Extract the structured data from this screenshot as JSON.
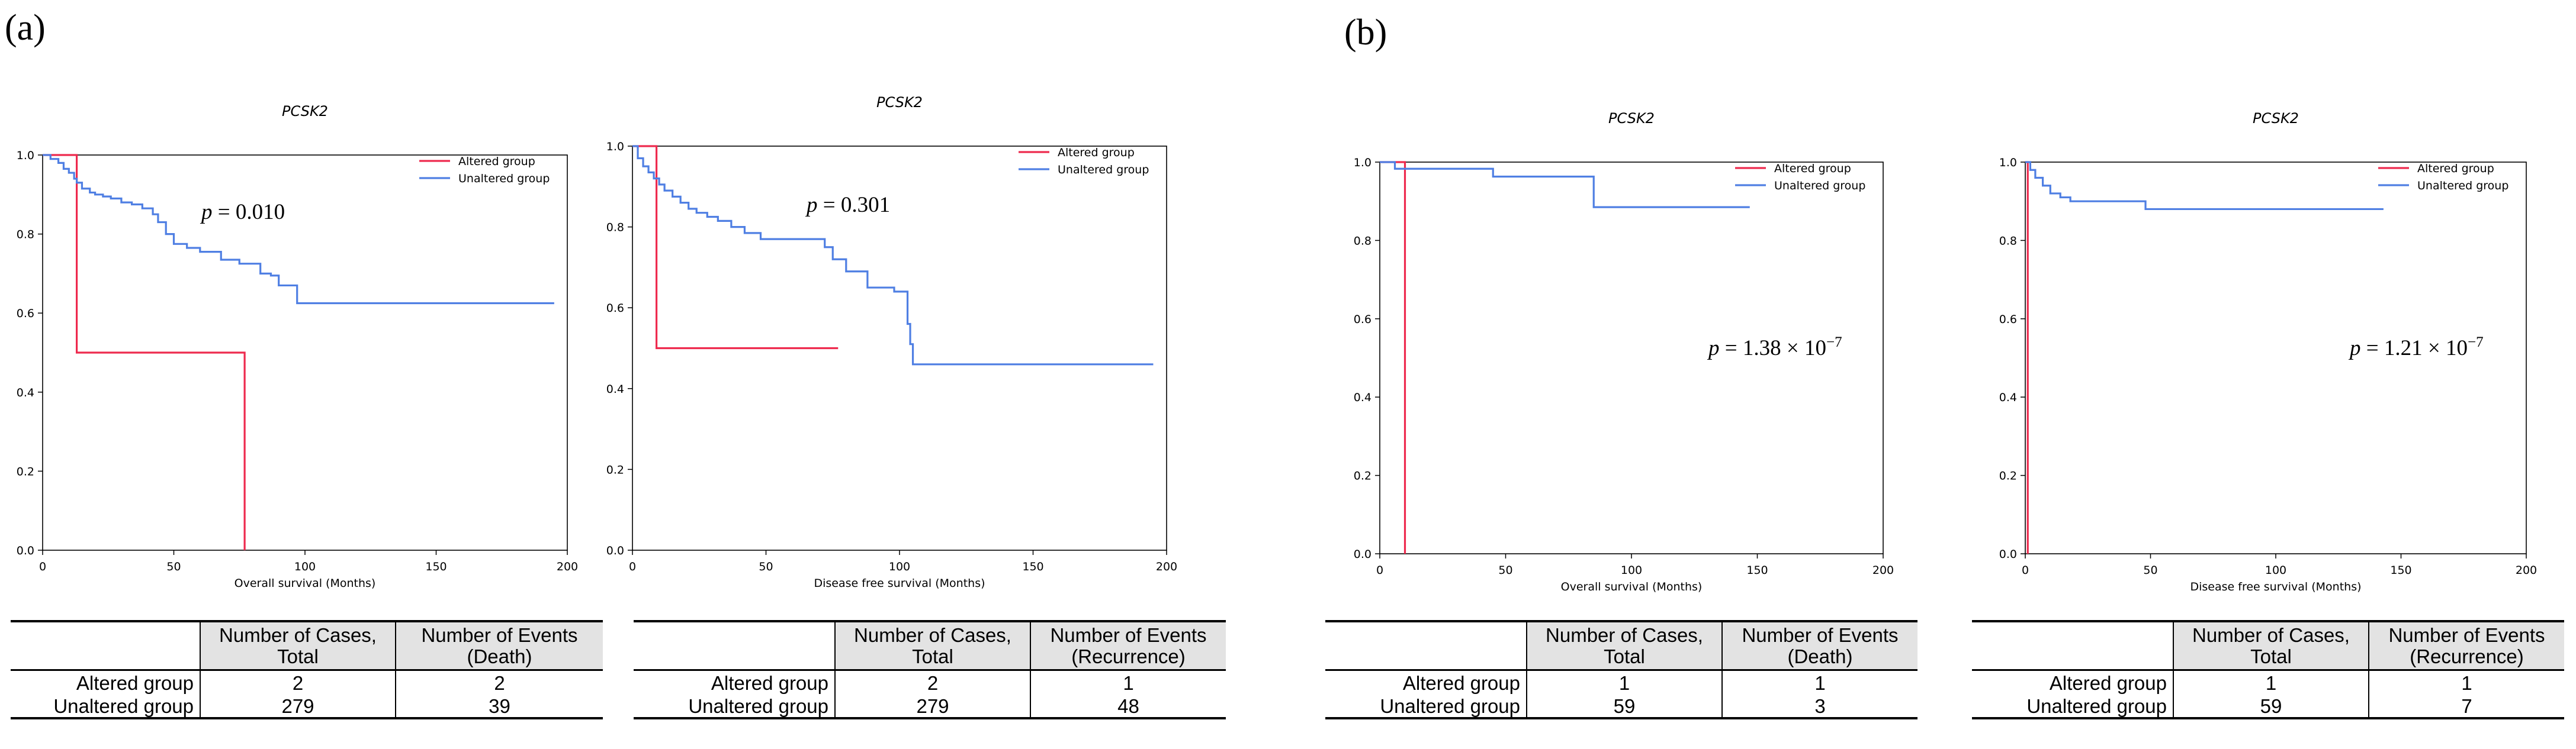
{
  "panel_labels": [
    "(a)",
    "(b)"
  ],
  "colors": {
    "altered": "#ee2a4e",
    "unaltered": "#4f7fe3"
  },
  "chart_data": [
    {
      "type": "line",
      "title": "PCSK2",
      "xlabel": "Overall survival (Months)",
      "ylabel": "",
      "xlim": [
        0,
        200
      ],
      "ylim": [
        0,
        1.0
      ],
      "xticks": [
        "0",
        "50",
        "100",
        "150",
        "200"
      ],
      "yticks": [
        "0.0",
        "0.2",
        "0.4",
        "0.6",
        "0.8",
        "1.0"
      ],
      "legend": [
        "Altered group",
        "Unaltered group"
      ],
      "p_label": "p",
      "p_value": "= 0.010",
      "series": [
        {
          "name": "Altered group",
          "x": [
            0,
            13,
            13,
            77,
            77
          ],
          "y": [
            1.0,
            1.0,
            0.5,
            0.5,
            0.0
          ]
        },
        {
          "name": "Unaltered group",
          "x": [
            0,
            3,
            6,
            8,
            10,
            12,
            13,
            15,
            18,
            20,
            23,
            26,
            30,
            34,
            38,
            42,
            44,
            47,
            50,
            55,
            60,
            68,
            75,
            83,
            87,
            90,
            97,
            195
          ],
          "y": [
            1.0,
            0.99,
            0.98,
            0.965,
            0.955,
            0.94,
            0.93,
            0.915,
            0.905,
            0.9,
            0.895,
            0.89,
            0.88,
            0.875,
            0.865,
            0.85,
            0.83,
            0.8,
            0.775,
            0.765,
            0.755,
            0.735,
            0.725,
            0.7,
            0.695,
            0.67,
            0.625,
            0.625
          ]
        }
      ]
    },
    {
      "type": "line",
      "title": "PCSK2",
      "xlabel": "Disease free survival (Months)",
      "ylabel": "",
      "xlim": [
        0,
        200
      ],
      "ylim": [
        0,
        1.0
      ],
      "xticks": [
        "0",
        "50",
        "100",
        "150",
        "200"
      ],
      "yticks": [
        "0.0",
        "0.2",
        "0.4",
        "0.6",
        "0.8",
        "1.0"
      ],
      "legend": [
        "Altered group",
        "Unaltered group"
      ],
      "p_label": "p",
      "p_value": "= 0.301",
      "series": [
        {
          "name": "Altered group",
          "x": [
            0,
            9,
            9,
            77
          ],
          "y": [
            1.0,
            1.0,
            0.5,
            0.5
          ]
        },
        {
          "name": "Unaltered group",
          "x": [
            0,
            2,
            4,
            6,
            8,
            10,
            12,
            15,
            18,
            21,
            24,
            28,
            32,
            37,
            42,
            48,
            55,
            60,
            72,
            75,
            80,
            88,
            98,
            103,
            104,
            105,
            195
          ],
          "y": [
            1.0,
            0.97,
            0.95,
            0.935,
            0.92,
            0.905,
            0.89,
            0.875,
            0.86,
            0.845,
            0.835,
            0.825,
            0.815,
            0.8,
            0.785,
            0.77,
            0.77,
            0.77,
            0.75,
            0.72,
            0.69,
            0.65,
            0.64,
            0.56,
            0.51,
            0.46,
            0.46
          ]
        }
      ]
    },
    {
      "type": "line",
      "title": "PCSK2",
      "xlabel": "Overall survival (Months)",
      "ylabel": "",
      "xlim": [
        0,
        200
      ],
      "ylim": [
        0,
        1.0
      ],
      "xticks": [
        "0",
        "50",
        "100",
        "150",
        "200"
      ],
      "yticks": [
        "0.0",
        "0.2",
        "0.4",
        "0.6",
        "0.8",
        "1.0"
      ],
      "legend": [
        "Altered group",
        "Unaltered group"
      ],
      "p_label": "p",
      "p_value": "= 1.38 × 10",
      "p_exp": "−7",
      "series": [
        {
          "name": "Altered group",
          "x": [
            0,
            10,
            10
          ],
          "y": [
            1.0,
            1.0,
            0.0
          ]
        },
        {
          "name": "Unaltered group",
          "x": [
            0,
            6,
            6,
            45,
            45,
            85,
            85,
            147
          ],
          "y": [
            1.0,
            1.0,
            0.983,
            0.983,
            0.963,
            0.963,
            0.885,
            0.885
          ]
        }
      ]
    },
    {
      "type": "line",
      "title": "PCSK2",
      "xlabel": "Disease free survival (Months)",
      "ylabel": "",
      "xlim": [
        0,
        200
      ],
      "ylim": [
        0,
        1.0
      ],
      "xticks": [
        "0",
        "50",
        "100",
        "150",
        "200"
      ],
      "yticks": [
        "0.0",
        "0.2",
        "0.4",
        "0.6",
        "0.8",
        "1.0"
      ],
      "legend": [
        "Altered group",
        "Unaltered group"
      ],
      "p_label": "p",
      "p_value": "= 1.21 × 10",
      "p_exp": "−7",
      "series": [
        {
          "name": "Altered group",
          "x": [
            0,
            1,
            1
          ],
          "y": [
            1.0,
            1.0,
            0.0
          ]
        },
        {
          "name": "Unaltered group",
          "x": [
            0,
            2,
            2,
            4,
            4,
            7,
            7,
            10,
            10,
            14,
            14,
            18,
            18,
            48,
            48,
            143
          ],
          "y": [
            1.0,
            1.0,
            0.98,
            0.98,
            0.96,
            0.96,
            0.94,
            0.94,
            0.92,
            0.92,
            0.91,
            0.91,
            0.9,
            0.9,
            0.88,
            0.88
          ]
        }
      ]
    }
  ],
  "tables": [
    {
      "headers": [
        "",
        "Number of Cases, Total",
        "Number of Events (Death)"
      ],
      "rows": [
        [
          "Altered group",
          "2",
          "2"
        ],
        [
          "Unaltered group",
          "279",
          "39"
        ]
      ]
    },
    {
      "headers": [
        "",
        "Number of Cases, Total",
        "Number of Events (Recurrence)"
      ],
      "rows": [
        [
          "Altered group",
          "2",
          "1"
        ],
        [
          "Unaltered group",
          "279",
          "48"
        ]
      ]
    },
    {
      "headers": [
        "",
        "Number of Cases, Total",
        "Number of Events (Death)"
      ],
      "rows": [
        [
          "Altered group",
          "1",
          "1"
        ],
        [
          "Unaltered group",
          "59",
          "3"
        ]
      ]
    },
    {
      "headers": [
        "",
        "Number of Cases, Total",
        "Number of Events (Recurrence)"
      ],
      "rows": [
        [
          "Altered group",
          "1",
          "1"
        ],
        [
          "Unaltered group",
          "59",
          "7"
        ]
      ]
    }
  ]
}
